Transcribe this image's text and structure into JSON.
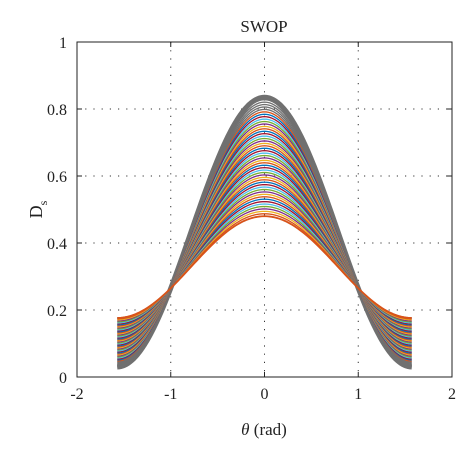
{
  "chart_data": {
    "type": "line",
    "title": "SWOP",
    "xlabel": "θ (rad)",
    "ylabel_main": "D",
    "ylabel_sub": "s",
    "xlim": [
      -2,
      2
    ],
    "ylim": [
      0,
      1
    ],
    "xticks": [
      -2,
      -1,
      0,
      1,
      2
    ],
    "yticks": [
      0,
      0.2,
      0.4,
      0.6,
      0.8,
      1
    ],
    "xtick_labels": [
      "-2",
      "-1",
      "0",
      "1",
      "2"
    ],
    "ytick_labels": [
      "0",
      "0.2",
      "0.4",
      "0.6",
      "0.8",
      "1"
    ],
    "grid": true,
    "x_range_of_curves": [
      -1.5708,
      1.5708
    ],
    "crossing_points": [
      [
        -1,
        0.265
      ],
      [
        1,
        0.265
      ]
    ],
    "series_count": 50,
    "family": "Ds(θ) = a + b·cos(2θ), all curves passing through (±1, 0.265)",
    "peak_range_at_theta_0": [
      0.48,
      0.835
    ],
    "edge_range_at_theta_pm_pi_over_2": [
      0.0,
      0.165
    ],
    "series_colors": [
      "#0072BD",
      "#D95319",
      "#EDB120",
      "#7E2F8E",
      "#77AC30",
      "#4DBEEE",
      "#A2142F"
    ],
    "envelope_color": "#707070"
  }
}
